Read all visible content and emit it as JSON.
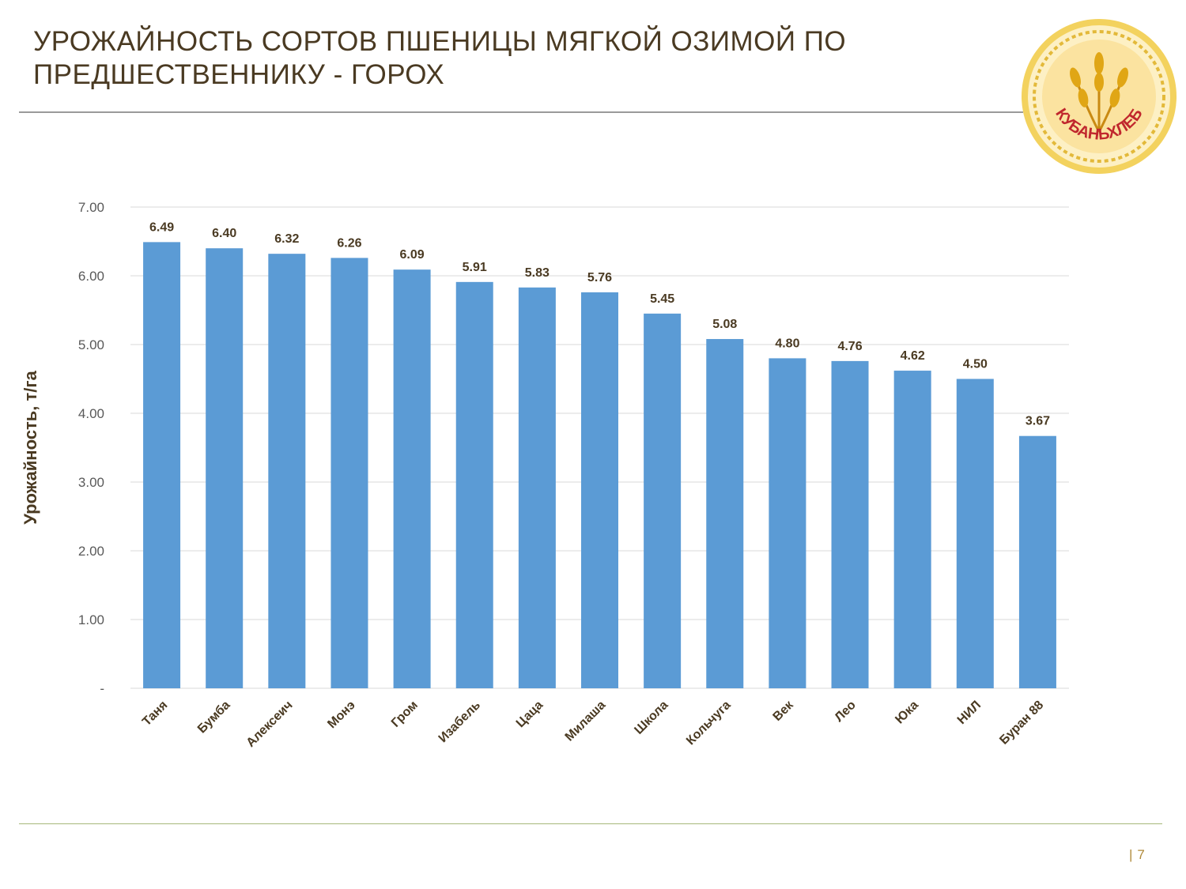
{
  "slide": {
    "title": "УРОЖАЙНОСТЬ СОРТОВ ПШЕНИЦЫ МЯГКОЙ ОЗИМОЙ ПО ПРЕДШЕСТВЕННИКУ - ГОРОХ",
    "page_number": "7",
    "page_separator": "|"
  },
  "logo": {
    "text": "КУБАНЬХЛЕБ",
    "colors": {
      "ring": "#e8c23a",
      "inner": "#fbe6a2",
      "text": "#c0272d",
      "wheat": "#d4a017"
    }
  },
  "colors": {
    "bar": "#5b9bd5",
    "label": "#4a3a22",
    "axis_text": "#595959",
    "grid": "#d9d9d9"
  },
  "chart_data": {
    "type": "bar",
    "title": "",
    "xlabel": "",
    "ylabel": "Урожайность, т/га",
    "categories": [
      "Таня",
      "Бумба",
      "Алексеич",
      "Монэ",
      "Гром",
      "Изабель",
      "Цаца",
      "Милаша",
      "Школа",
      "Кольчуга",
      "Век",
      "Лео",
      "Юка",
      "НИЛ",
      "Буран 88"
    ],
    "values": [
      6.49,
      6.4,
      6.32,
      6.26,
      6.09,
      5.91,
      5.83,
      5.76,
      5.45,
      5.08,
      4.8,
      4.76,
      4.62,
      4.5,
      3.67
    ],
    "data_labels": [
      "6.49",
      "6.40",
      "6.32",
      "6.26",
      "6.09",
      "5.91",
      "5.83",
      "5.76",
      "5.45",
      "5.08",
      "4.80",
      "4.76",
      "4.62",
      "4.50",
      "3.67"
    ],
    "yticks": [
      "-",
      "1.00",
      "2.00",
      "3.00",
      "4.00",
      "5.00",
      "6.00",
      "7.00"
    ],
    "ylim": [
      0,
      7
    ],
    "grid": true,
    "legend": "none"
  }
}
